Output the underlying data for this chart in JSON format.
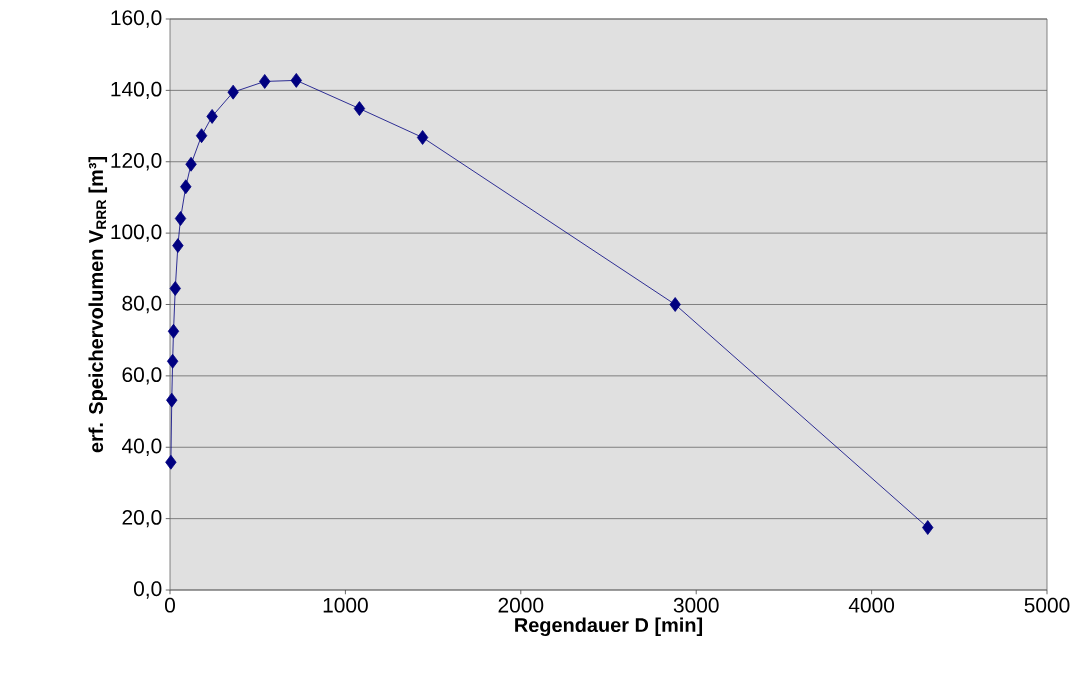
{
  "chart_data": {
    "type": "line",
    "xlabel": "Regendauer D [min]",
    "ylabel": "erf. Speichervolumen V$_{RRR}$ [m³]",
    "x": [
      5,
      10,
      15,
      20,
      30,
      45,
      60,
      90,
      120,
      180,
      240,
      360,
      540,
      720,
      1080,
      1440,
      2880,
      4320
    ],
    "series": [
      {
        "color": "#000080",
        "values": [
          35.8,
          53.2,
          64.1,
          72.5,
          84.5,
          96.5,
          104.1,
          113.0,
          119.3,
          127.3,
          132.7,
          139.5,
          142.5,
          142.8,
          134.9,
          126.8,
          80.0,
          17.5
        ]
      }
    ],
    "xlim": [
      0,
      5000
    ],
    "xticks": [
      0,
      1000,
      2000,
      3000,
      4000,
      5000
    ],
    "ylim": [
      0,
      160
    ],
    "yticks": [
      {
        "value": 0,
        "label": "0,0"
      },
      {
        "value": 20,
        "label": "20,0"
      },
      {
        "value": 40,
        "label": "40,0"
      },
      {
        "value": 60,
        "label": "60,0"
      },
      {
        "value": 80,
        "label": "80,0"
      },
      {
        "value": 100,
        "label": "100,0"
      },
      {
        "value": 120,
        "label": "120,0"
      },
      {
        "value": 140,
        "label": "140,0"
      },
      {
        "value": 160,
        "label": "160,0"
      }
    ],
    "grid": "y",
    "marker": "diamond",
    "line_style": "solid"
  }
}
